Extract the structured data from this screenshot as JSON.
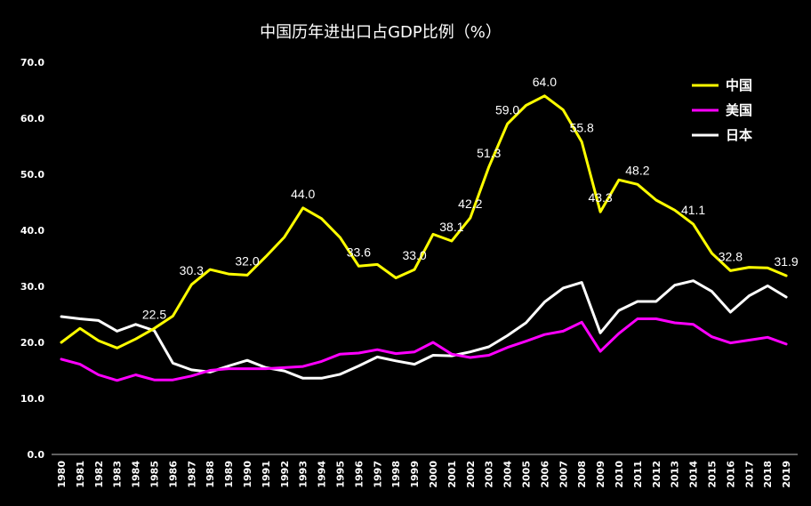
{
  "chart_data": {
    "type": "line",
    "title": "中国历年进出口占GDP比例（%）",
    "xlabel": "",
    "ylabel": "",
    "ylim": [
      0,
      70
    ],
    "yticks": [
      "0.0",
      "10.0",
      "20.0",
      "30.0",
      "40.0",
      "50.0",
      "60.0",
      "70.0"
    ],
    "categories": [
      "1980",
      "1981",
      "1982",
      "1983",
      "1984",
      "1985",
      "1986",
      "1987",
      "1988",
      "1989",
      "1990",
      "1991",
      "1992",
      "1993",
      "1994",
      "1995",
      "1996",
      "1997",
      "1998",
      "1999",
      "2000",
      "2001",
      "2002",
      "2003",
      "2004",
      "2005",
      "2006",
      "2007",
      "2008",
      "2009",
      "2010",
      "2011",
      "2012",
      "2013",
      "2014",
      "2015",
      "2016",
      "2017",
      "2018",
      "2019"
    ],
    "legend_position": "top-right",
    "grid": false,
    "series": [
      {
        "name": "中国",
        "color": "#ffff00",
        "values": [
          20.0,
          22.5,
          20.3,
          19.0,
          20.6,
          22.5,
          24.7,
          30.3,
          33.0,
          32.2,
          32.0,
          35.3,
          38.8,
          44.0,
          42.1,
          38.7,
          33.6,
          33.9,
          31.5,
          33.0,
          39.3,
          38.1,
          42.2,
          51.3,
          59.0,
          62.3,
          64.0,
          61.5,
          55.8,
          43.3,
          49.0,
          48.2,
          45.4,
          43.6,
          41.1,
          35.9,
          32.8,
          33.4,
          33.3,
          31.9
        ],
        "labels": {
          "5": "22.5",
          "7": "30.3",
          "10": "32.0",
          "13": "44.0",
          "16": "33.6",
          "19": "33.0",
          "21": "38.1",
          "22": "42.2",
          "23": "51.3",
          "24": "59.0",
          "26": "64.0",
          "28": "55.8",
          "29": "43.3",
          "31": "48.2",
          "34": "41.1",
          "36": "32.8",
          "39": "31.9"
        }
      },
      {
        "name": "美国",
        "color": "#ff00ff",
        "values": [
          17.0,
          16.1,
          14.2,
          13.2,
          14.2,
          13.3,
          13.3,
          14.0,
          15.0,
          15.3,
          15.3,
          15.3,
          15.5,
          15.7,
          16.6,
          17.9,
          18.1,
          18.7,
          18.0,
          18.3,
          20.0,
          17.9,
          17.3,
          17.7,
          19.1,
          20.2,
          21.4,
          22.0,
          23.6,
          18.4,
          21.6,
          24.2,
          24.2,
          23.5,
          23.2,
          21.0,
          19.9,
          20.4,
          20.9,
          19.7
        ]
      },
      {
        "name": "日本",
        "color": "#ffffff",
        "values": [
          24.6,
          24.2,
          23.9,
          22.0,
          23.2,
          22.1,
          16.3,
          15.1,
          14.7,
          15.8,
          16.8,
          15.5,
          14.9,
          13.6,
          13.6,
          14.3,
          15.8,
          17.4,
          16.7,
          16.1,
          17.7,
          17.6,
          18.3,
          19.2,
          21.2,
          23.5,
          27.2,
          29.7,
          30.7,
          21.7,
          25.7,
          27.3,
          27.3,
          30.2,
          31.0,
          29.1,
          25.4,
          28.3,
          30.1,
          28.1
        ]
      }
    ]
  }
}
